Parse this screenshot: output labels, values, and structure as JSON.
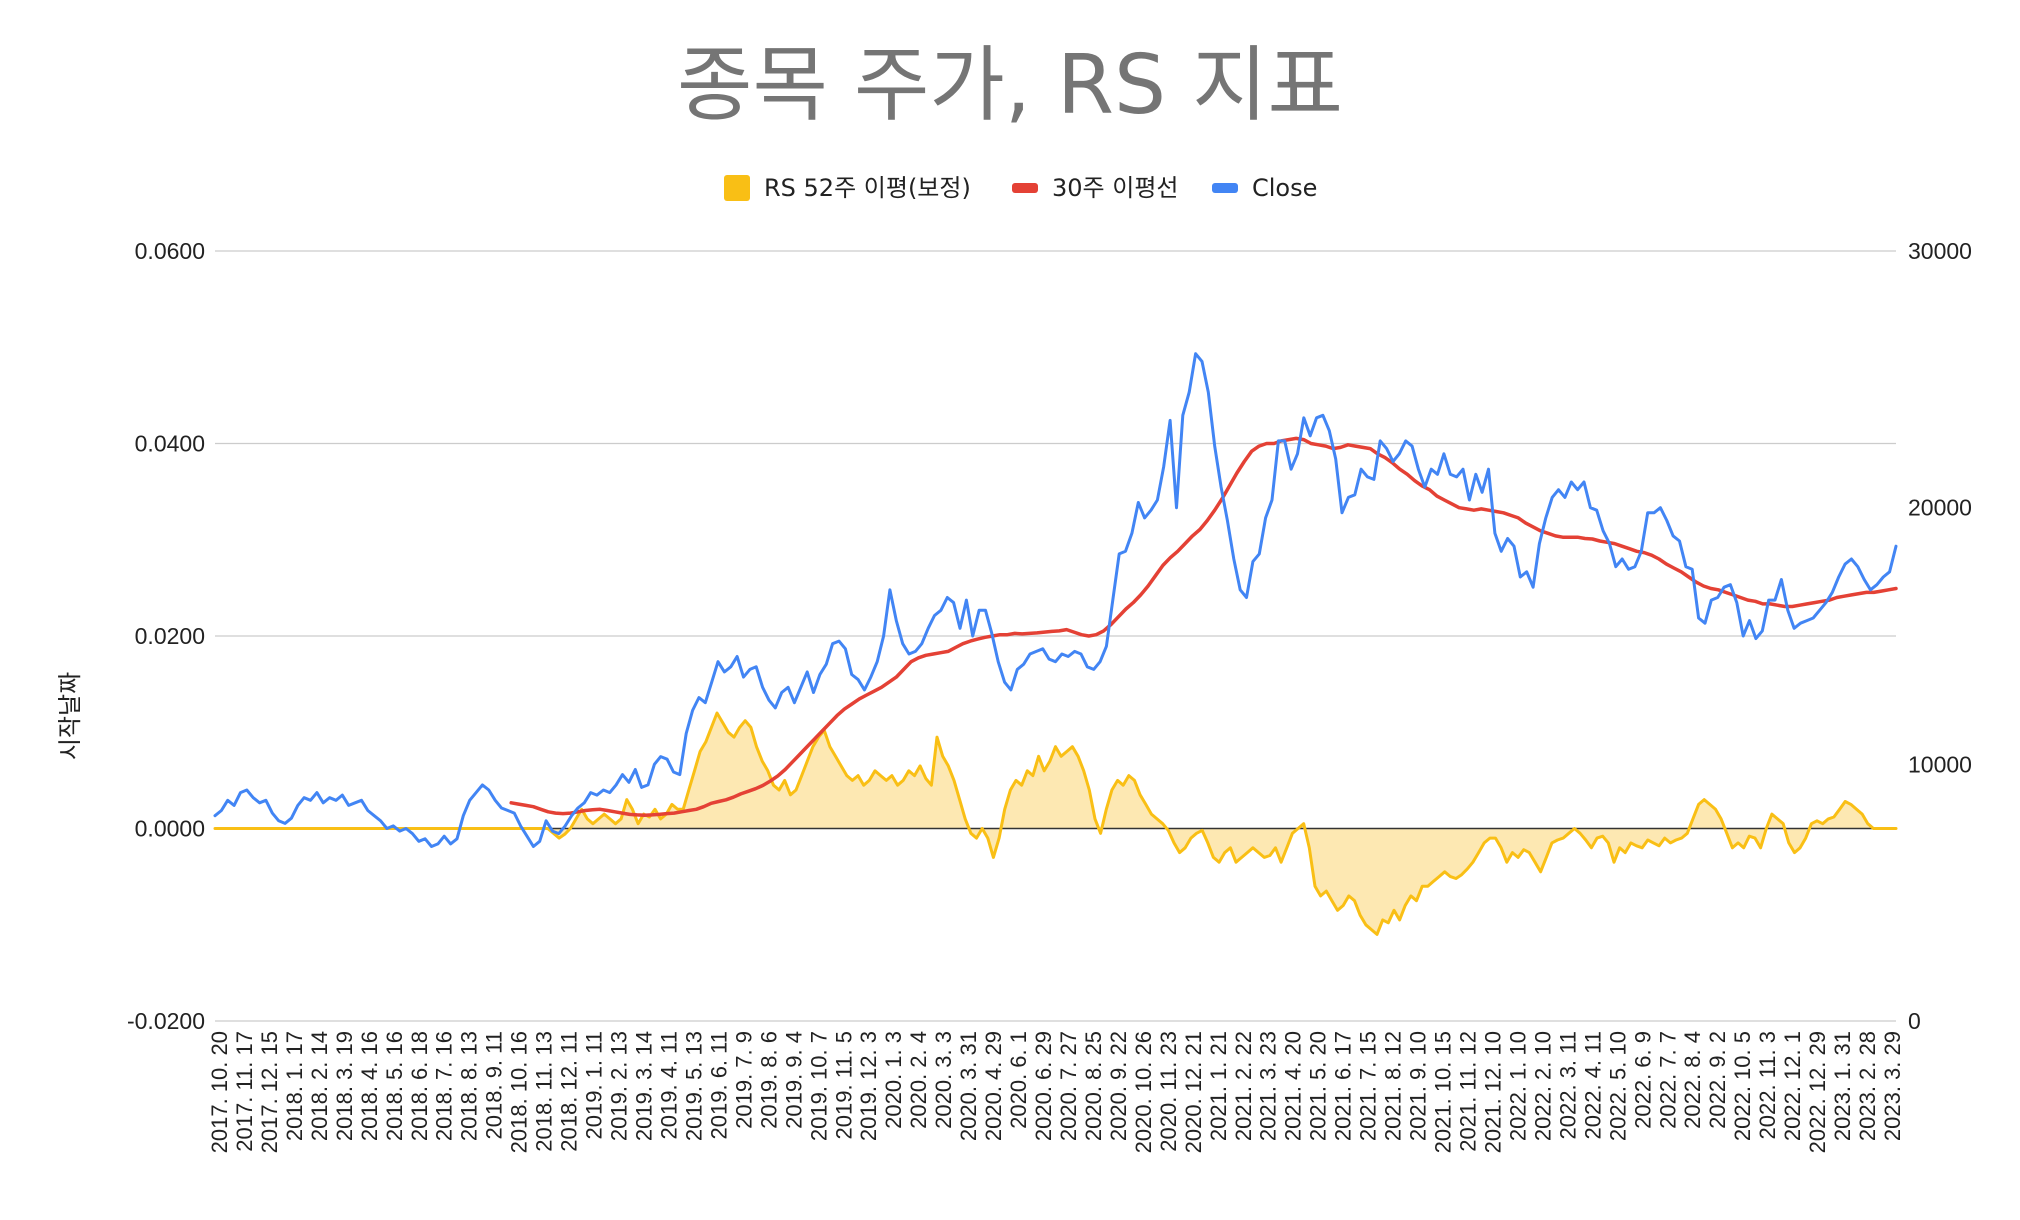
{
  "colors": {
    "rs": "#f9bf15",
    "rs_fill": "#fde8b2",
    "ma30": "#e44135",
    "close": "#4285f4",
    "grid": "#cccccc",
    "zero": "#333333"
  },
  "chart_data": {
    "type": "line",
    "title": "종목 주가, RS 지표",
    "xlabel": "",
    "ylabel": "시작날짜",
    "legend_position": "top",
    "ylim_left": [
      -0.02,
      0.06
    ],
    "ylim_right": [
      0,
      30000
    ],
    "yticks_left": [
      "0.0600",
      "0.0400",
      "0.0200",
      "0.0000",
      "-0.0200"
    ],
    "yticks_right": [
      "30000",
      "20000",
      "10000",
      "0"
    ],
    "x_tick_labels": [
      "2017. 10. 20",
      "2017. 11. 17",
      "2017. 12. 15",
      "2018. 1. 17",
      "2018. 2. 14",
      "2018. 3. 19",
      "2018. 4. 16",
      "2018. 5. 16",
      "2018. 6. 18",
      "2018. 7. 16",
      "2018. 8. 13",
      "2018. 9. 11",
      "2018. 10. 16",
      "2018. 11. 13",
      "2018. 12. 11",
      "2019. 1. 11",
      "2019. 2. 13",
      "2019. 3. 14",
      "2019. 4. 11",
      "2019. 5. 13",
      "2019. 6. 11",
      "2019. 7. 9",
      "2019. 8. 6",
      "2019. 9. 4",
      "2019. 10. 7",
      "2019. 11. 5",
      "2019. 12. 3",
      "2020. 1. 3",
      "2020. 2. 4",
      "2020. 3. 3",
      "2020. 3. 31",
      "2020. 4. 29",
      "2020. 6. 1",
      "2020. 6. 29",
      "2020. 7. 27",
      "2020. 8. 25",
      "2020. 9. 22",
      "2020. 10. 26",
      "2020. 11. 23",
      "2020. 12. 21",
      "2021. 1. 21",
      "2021. 2. 22",
      "2021. 3. 23",
      "2021. 4. 20",
      "2021. 5. 20",
      "2021. 6. 17",
      "2021. 7. 15",
      "2021. 8. 12",
      "2021. 9. 10",
      "2021. 10. 15",
      "2021. 11. 12",
      "2021. 12. 10",
      "2022. 1. 10",
      "2022. 2. 10",
      "2022. 3. 11",
      "2022. 4. 11",
      "2022. 5. 10",
      "2022. 6. 9",
      "2022. 7. 7",
      "2022. 8. 4",
      "2022. 9. 2",
      "2022. 10. 5",
      "2022. 11. 3",
      "2022. 12. 1",
      "2022. 12. 29",
      "2023. 1. 31",
      "2023. 2. 28",
      "2023. 3. 29"
    ],
    "series": [
      {
        "name": "RS 52주 이평(보정)",
        "axis": "left",
        "style": "area",
        "values": [
          0,
          0,
          0,
          0,
          0,
          0,
          0,
          0,
          0,
          0,
          0,
          0,
          0,
          0,
          0,
          0,
          0,
          0,
          0,
          0,
          0,
          0,
          0,
          0,
          0,
          0,
          0,
          0,
          0,
          0,
          0,
          0,
          0,
          0,
          0,
          0,
          0,
          0,
          0,
          0,
          0,
          0,
          0,
          0,
          0,
          0,
          0,
          0,
          0,
          0,
          0,
          0,
          0,
          0,
          0,
          0,
          0,
          0,
          0,
          0,
          -0.0005,
          -0.001,
          -0.0006,
          0,
          0.001,
          0.002,
          0.001,
          0.0005,
          0.001,
          0.0015,
          0.001,
          0.0005,
          0.001,
          0.003,
          0.002,
          0.0005,
          0.0015,
          0.0012,
          0.002,
          0.001,
          0.0015,
          0.0025,
          0.002,
          0.002,
          0.004,
          0.006,
          0.008,
          0.009,
          0.0105,
          0.012,
          0.011,
          0.01,
          0.0095,
          0.0105,
          0.0112,
          0.0105,
          0.0085,
          0.007,
          0.006,
          0.0045,
          0.004,
          0.005,
          0.0035,
          0.004,
          0.0055,
          0.007,
          0.0085,
          0.0095,
          0.0102,
          0.0085,
          0.0075,
          0.0065,
          0.0055,
          0.005,
          0.0055,
          0.0045,
          0.005,
          0.006,
          0.0055,
          0.005,
          0.0055,
          0.0045,
          0.005,
          0.006,
          0.0055,
          0.0065,
          0.0052,
          0.0045,
          0.0095,
          0.0075,
          0.0065,
          0.005,
          0.003,
          0.001,
          -0.0005,
          -0.001,
          0,
          -0.001,
          -0.003,
          -0.001,
          0.002,
          0.004,
          0.005,
          0.0045,
          0.006,
          0.0055,
          0.0075,
          0.006,
          0.007,
          0.0085,
          0.0075,
          0.008,
          0.0085,
          0.0075,
          0.006,
          0.004,
          0.001,
          -0.0005,
          0.002,
          0.004,
          0.005,
          0.0045,
          0.0055,
          0.005,
          0.0035,
          0.0025,
          0.0015,
          0.001,
          0.0005,
          -0.0002,
          -0.0015,
          -0.0025,
          -0.002,
          -0.001,
          -0.0005,
          -0.0002,
          -0.0015,
          -0.003,
          -0.0035,
          -0.0025,
          -0.002,
          -0.0035,
          -0.003,
          -0.0025,
          -0.002,
          -0.0025,
          -0.003,
          -0.0028,
          -0.002,
          -0.0035,
          -0.002,
          -0.0005,
          0,
          0.0005,
          -0.002,
          -0.006,
          -0.007,
          -0.0065,
          -0.0075,
          -0.0085,
          -0.008,
          -0.007,
          -0.0075,
          -0.009,
          -0.01,
          -0.0105,
          -0.011,
          -0.0095,
          -0.0098,
          -0.0085,
          -0.0095,
          -0.008,
          -0.007,
          -0.0075,
          -0.006,
          -0.006,
          -0.0055,
          -0.005,
          -0.0045,
          -0.005,
          -0.0052,
          -0.0048,
          -0.0042,
          -0.0035,
          -0.0025,
          -0.0015,
          -0.001,
          -0.001,
          -0.002,
          -0.0035,
          -0.0025,
          -0.003,
          -0.0022,
          -0.0025,
          -0.0035,
          -0.0045,
          -0.003,
          -0.0015,
          -0.0012,
          -0.001,
          -0.0005,
          0,
          -0.0005,
          -0.0012,
          -0.002,
          -0.001,
          -0.0008,
          -0.0015,
          -0.0035,
          -0.002,
          -0.0025,
          -0.0015,
          -0.0018,
          -0.002,
          -0.0012,
          -0.0015,
          -0.0018,
          -0.001,
          -0.0015,
          -0.0012,
          -0.001,
          -0.0005,
          0.001,
          0.0025,
          0.003,
          0.0025,
          0.002,
          0.001,
          -0.0005,
          -0.002,
          -0.0015,
          -0.002,
          -0.0008,
          -0.001,
          -0.002,
          0,
          0.0015,
          0.001,
          0.0005,
          -0.0015,
          -0.0025,
          -0.002,
          -0.001,
          0.0005,
          0.0008,
          0.0005,
          0.001,
          0.0012,
          0.002,
          0.0028,
          0.0025,
          0.002,
          0.0015,
          0.0005,
          0,
          0,
          0,
          0,
          0
        ]
      },
      {
        "name": "30주 이평선",
        "axis": "right",
        "style": "line",
        "values": [
          null,
          null,
          null,
          null,
          null,
          null,
          null,
          null,
          null,
          null,
          null,
          null,
          null,
          null,
          null,
          null,
          null,
          null,
          null,
          null,
          null,
          null,
          null,
          null,
          null,
          null,
          null,
          null,
          null,
          null,
          null,
          null,
          null,
          null,
          null,
          null,
          null,
          null,
          null,
          null,
          8500,
          8450,
          8400,
          8350,
          8250,
          8150,
          8100,
          8080,
          8100,
          8150,
          8200,
          8230,
          8250,
          8200,
          8150,
          8100,
          8050,
          8030,
          8020,
          8030,
          8050,
          8080,
          8100,
          8150,
          8200,
          8250,
          8350,
          8480,
          8550,
          8620,
          8720,
          8850,
          8950,
          9050,
          9180,
          9350,
          9550,
          9800,
          10100,
          10400,
          10700,
          11000,
          11300,
          11600,
          11900,
          12150,
          12350,
          12550,
          12700,
          12850,
          13000,
          13200,
          13400,
          13700,
          14000,
          14150,
          14250,
          14300,
          14350,
          14400,
          14550,
          14700,
          14800,
          14880,
          14950,
          15000,
          15050,
          15050,
          15100,
          15080,
          15100,
          15120,
          15150,
          15180,
          15200,
          15250,
          15150,
          15050,
          15000,
          15050,
          15200,
          15450,
          15750,
          16050,
          16300,
          16600,
          16950,
          17350,
          17750,
          18050,
          18300,
          18600,
          18900,
          19150,
          19500,
          19900,
          20350,
          20850,
          21350,
          21800,
          22200,
          22400,
          22500,
          22500,
          22600,
          22650,
          22700,
          22650,
          22500,
          22450,
          22400,
          22300,
          22350,
          22450,
          22400,
          22350,
          22300,
          22100,
          21950,
          21750,
          21500,
          21300,
          21050,
          20850,
          20700,
          20450,
          20300,
          20150,
          20000,
          19950,
          19900,
          19950,
          19900,
          19850,
          19800,
          19700,
          19600,
          19400,
          19250,
          19100,
          19000,
          18900,
          18850,
          18850,
          18850,
          18800,
          18780,
          18700,
          18650,
          18600,
          18500,
          18400,
          18300,
          18250,
          18150,
          18000,
          17800,
          17650,
          17500,
          17300,
          17100,
          16950,
          16850,
          16800,
          16700,
          16600,
          16500,
          16400,
          16350,
          16250,
          16250,
          16200,
          16150,
          16150,
          16200,
          16250,
          16300,
          16350,
          16400,
          16500,
          16550,
          16600,
          16650,
          16700,
          16700,
          16750,
          16800,
          16850
        ]
      },
      {
        "name": "Close",
        "axis": "right",
        "style": "line",
        "values": [
          8000,
          8200,
          8600,
          8400,
          8900,
          9000,
          8700,
          8500,
          8600,
          8100,
          7800,
          7700,
          7900,
          8400,
          8700,
          8600,
          8900,
          8500,
          8700,
          8600,
          8800,
          8400,
          8500,
          8600,
          8200,
          8000,
          7800,
          7500,
          7600,
          7400,
          7500,
          7300,
          7000,
          7100,
          6800,
          6900,
          7200,
          6900,
          7100,
          8000,
          8600,
          8900,
          9200,
          9000,
          8600,
          8300,
          8200,
          8100,
          7600,
          7200,
          6800,
          7000,
          7800,
          7400,
          7300,
          7600,
          8000,
          8300,
          8500,
          8900,
          8800,
          9000,
          8900,
          9200,
          9600,
          9300,
          9800,
          9100,
          9200,
          10000,
          10300,
          10200,
          9700,
          9600,
          11200,
          12100,
          12600,
          12400,
          13200,
          14000,
          13600,
          13800,
          14200,
          13400,
          13700,
          13800,
          13000,
          12500,
          12200,
          12800,
          13000,
          12400,
          13000,
          13600,
          12800,
          13500,
          13900,
          14700,
          14800,
          14500,
          13500,
          13300,
          12900,
          13400,
          14000,
          15000,
          16800,
          15600,
          14700,
          14300,
          14400,
          14700,
          15300,
          15800,
          16000,
          16500,
          16300,
          15300,
          16400,
          15000,
          16000,
          16000,
          15100,
          14000,
          13200,
          12900,
          13700,
          13900,
          14300,
          14400,
          14500,
          14100,
          14000,
          14300,
          14200,
          14400,
          14300,
          13800,
          13700,
          14000,
          14600,
          16400,
          18200,
          18300,
          19000,
          20200,
          19600,
          19900,
          20300,
          21600,
          23400,
          20000,
          23600,
          24500,
          26000,
          25700,
          24500,
          22400,
          20800,
          19500,
          18000,
          16800,
          16500,
          17900,
          18200,
          19600,
          20300,
          22600,
          22600,
          21500,
          22100,
          23500,
          22800,
          23500,
          23600,
          23000,
          21900,
          19800,
          20400,
          20500,
          21500,
          21200,
          21100,
          22600,
          22300,
          21800,
          22100,
          22600,
          22400,
          21500,
          20800,
          21500,
          21300,
          22100,
          21300,
          21200,
          21500,
          20300,
          21300,
          20600,
          21500,
          19000,
          18300,
          18800,
          18500,
          17300,
          17500,
          16900,
          18600,
          19600,
          20400,
          20700,
          20400,
          21000,
          20700,
          21000,
          20000,
          19900,
          19100,
          18600,
          17700,
          18000,
          17600,
          17700,
          18300,
          19800,
          19800,
          20000,
          19500,
          18900,
          18700,
          17700,
          17600,
          15700,
          15500,
          16400,
          16500,
          16900,
          17000,
          16300,
          15000,
          15600,
          14900,
          15200,
          16400,
          16400,
          17200,
          16000,
          15300,
          15500,
          15600,
          15700,
          16000,
          16300,
          16700,
          17300,
          17800,
          18000,
          17700,
          17200,
          16800,
          17000,
          17300,
          17500,
          18500
        ]
      }
    ]
  }
}
